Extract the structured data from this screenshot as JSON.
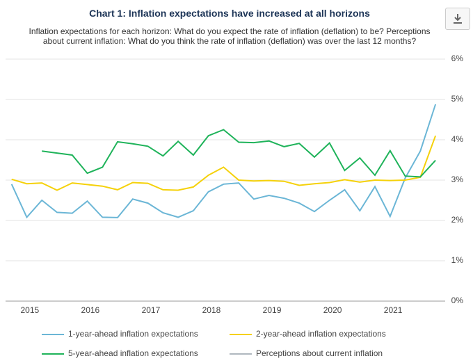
{
  "chart_data": {
    "type": "line",
    "title": "Chart 1: Inflation expectations have increased at all horizons",
    "subtitle": "Inflation expectations for each horizon: What do you expect the rate of inflation (deflation) to be? Perceptions about current inflation: What do you think the rate of inflation (deflation) was over the last 12 months?",
    "x": [
      2015,
      2015.25,
      2015.5,
      2015.75,
      2016,
      2016.25,
      2016.5,
      2016.75,
      2017,
      2017.25,
      2017.5,
      2017.75,
      2018,
      2018.25,
      2018.5,
      2018.75,
      2019,
      2019.25,
      2019.5,
      2019.75,
      2020,
      2020.25,
      2020.5,
      2020.75,
      2021,
      2021.25,
      2021.5,
      2021.75,
      2022
    ],
    "series": [
      {
        "name": "1-year-ahead inflation expectations",
        "color": "#6bb6d6",
        "values": [
          2.9,
          2.08,
          2.5,
          2.2,
          2.18,
          2.48,
          2.08,
          2.07,
          2.53,
          2.43,
          2.19,
          2.08,
          2.24,
          2.71,
          2.9,
          2.93,
          2.53,
          2.62,
          2.55,
          2.43,
          2.22,
          2.5,
          2.76,
          2.24,
          2.84,
          2.1,
          3.05,
          3.72,
          4.88
        ]
      },
      {
        "name": "2-year-ahead inflation expectations",
        "color": "#f5d10a",
        "values": [
          3.02,
          2.91,
          2.93,
          2.75,
          2.93,
          2.89,
          2.85,
          2.76,
          2.94,
          2.92,
          2.76,
          2.75,
          2.83,
          3.12,
          3.32,
          3.0,
          2.98,
          2.99,
          2.97,
          2.87,
          2.91,
          2.94,
          3.01,
          2.95,
          3.0,
          2.99,
          3.0,
          3.07,
          4.1
        ]
      },
      {
        "name": "5-year-ahead inflation expectations",
        "color": "#1fb35a",
        "values": [
          null,
          null,
          3.72,
          3.67,
          3.62,
          3.17,
          3.32,
          3.95,
          3.9,
          3.84,
          3.6,
          3.96,
          3.62,
          4.1,
          4.25,
          3.94,
          3.93,
          3.97,
          3.83,
          3.91,
          3.57,
          3.92,
          3.24,
          3.55,
          3.12,
          3.73,
          3.1,
          3.08,
          3.49
        ]
      },
      {
        "name": "Perceptions about current inflation",
        "color": "#b0b8bf",
        "hidden": true,
        "values": [
          null,
          null,
          null,
          null,
          null,
          null,
          null,
          null,
          null,
          null,
          null,
          null,
          null,
          null,
          null,
          null,
          null,
          null,
          null,
          null,
          null,
          null,
          null,
          null,
          null,
          null,
          null,
          null,
          null
        ]
      }
    ],
    "xlim": [
      2014.9,
      2022.16
    ],
    "xticks": [
      {
        "value": 2015.3,
        "label": "2015"
      },
      {
        "value": 2016.3,
        "label": "2016"
      },
      {
        "value": 2017.3,
        "label": "2017"
      },
      {
        "value": 2018.3,
        "label": "2018"
      },
      {
        "value": 2019.3,
        "label": "2019"
      },
      {
        "value": 2020.3,
        "label": "2020"
      },
      {
        "value": 2021.3,
        "label": "2021"
      }
    ],
    "ylim": [
      0,
      6
    ],
    "yticks": [
      {
        "value": 0,
        "label": "0%"
      },
      {
        "value": 1,
        "label": "1%"
      },
      {
        "value": 2,
        "label": "2%"
      },
      {
        "value": 3,
        "label": "3%"
      },
      {
        "value": 4,
        "label": "4%"
      },
      {
        "value": 5,
        "label": "5%"
      },
      {
        "value": 6,
        "label": "6%"
      }
    ],
    "grid": true,
    "legend": "bottom"
  }
}
